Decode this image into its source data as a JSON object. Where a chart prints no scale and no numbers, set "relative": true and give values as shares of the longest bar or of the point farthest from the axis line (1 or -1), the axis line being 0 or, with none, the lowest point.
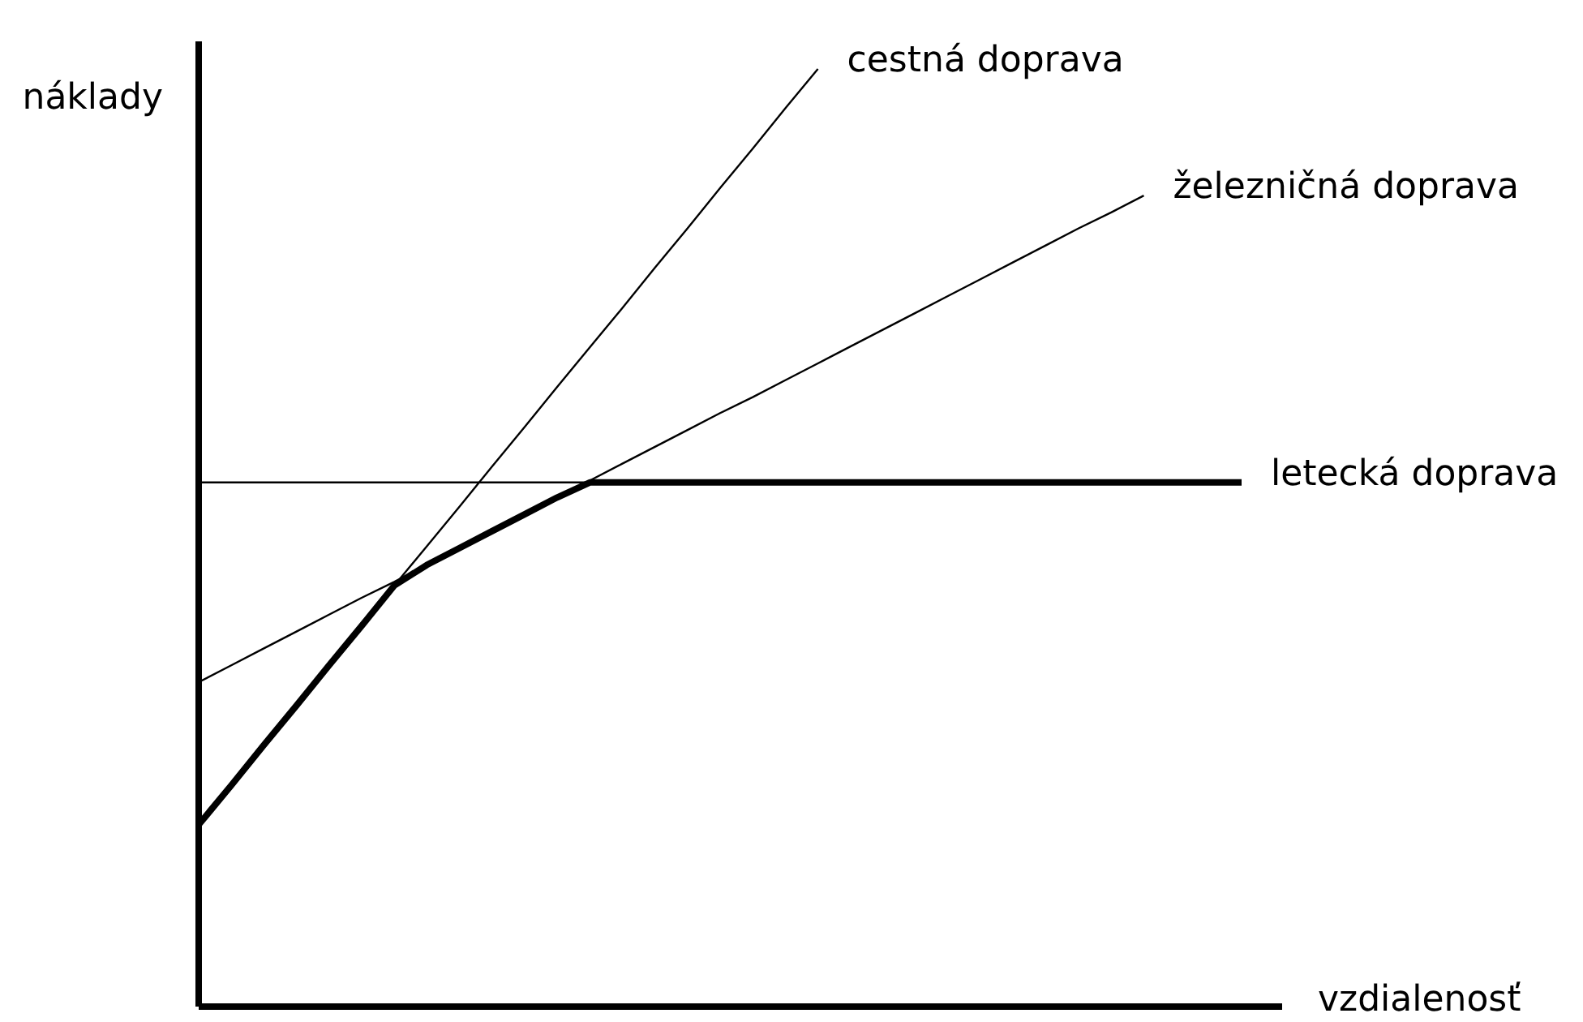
{
  "chart_data": {
    "type": "line",
    "relative": true,
    "xlabel": "vzdialenosť",
    "ylabel": "náklady",
    "categories": [
      null,
      null,
      null,
      null,
      null,
      null,
      null,
      null,
      null,
      null,
      null,
      null,
      null,
      null,
      null,
      null,
      null,
      null,
      null,
      null,
      null,
      null,
      null,
      null,
      null,
      null,
      null,
      null,
      null,
      null,
      null,
      null,
      null
    ],
    "series": [
      {
        "name": "cestná doprava",
        "color": "#000000",
        "values": [
          0.194,
          0.236,
          0.279,
          0.321,
          0.364,
          0.406,
          0.449,
          0.491,
          0.533,
          0.576,
          0.618,
          0.661,
          0.703,
          0.745,
          0.788,
          0.83,
          0.873,
          0.915,
          0.958,
          1.0,
          null,
          null,
          null,
          null,
          null,
          null,
          null,
          null,
          null,
          null,
          null,
          null,
          null
        ]
      },
      {
        "name": "železničná doprava",
        "color": "#000000",
        "values": [
          0.346,
          0.364,
          0.382,
          0.4,
          0.418,
          0.436,
          0.453,
          0.471,
          0.489,
          0.507,
          0.525,
          0.543,
          0.561,
          0.579,
          0.597,
          0.615,
          0.633,
          0.65,
          0.668,
          0.686,
          0.704,
          0.722,
          0.74,
          0.758,
          0.776,
          0.794,
          0.812,
          0.83,
          0.847,
          0.865,
          null,
          null,
          null
        ]
      },
      {
        "name": "letecká doprava",
        "color": "#000000",
        "values": [
          0.559,
          0.559,
          0.559,
          0.559,
          0.559,
          0.559,
          0.559,
          0.559,
          0.559,
          0.559,
          0.559,
          0.559,
          0.559,
          0.559,
          0.559,
          0.559,
          0.559,
          0.559,
          0.559,
          0.559,
          0.559,
          0.559,
          0.559,
          0.559,
          0.559,
          0.559,
          0.559,
          0.559,
          0.559,
          0.559,
          0.559,
          0.559,
          0.559
        ]
      },
      {
        "color": "#000000",
        "values": [
          0.194,
          0.236,
          0.279,
          0.321,
          0.364,
          0.406,
          0.449,
          0.471,
          0.489,
          0.507,
          0.525,
          0.543,
          0.559,
          0.559,
          0.559,
          0.559,
          0.559,
          0.559,
          0.559,
          0.559,
          0.559,
          0.559,
          0.559,
          0.559,
          0.559,
          0.559,
          0.559,
          0.559,
          0.559,
          0.559,
          0.559,
          0.559,
          0.559
        ]
      }
    ]
  }
}
